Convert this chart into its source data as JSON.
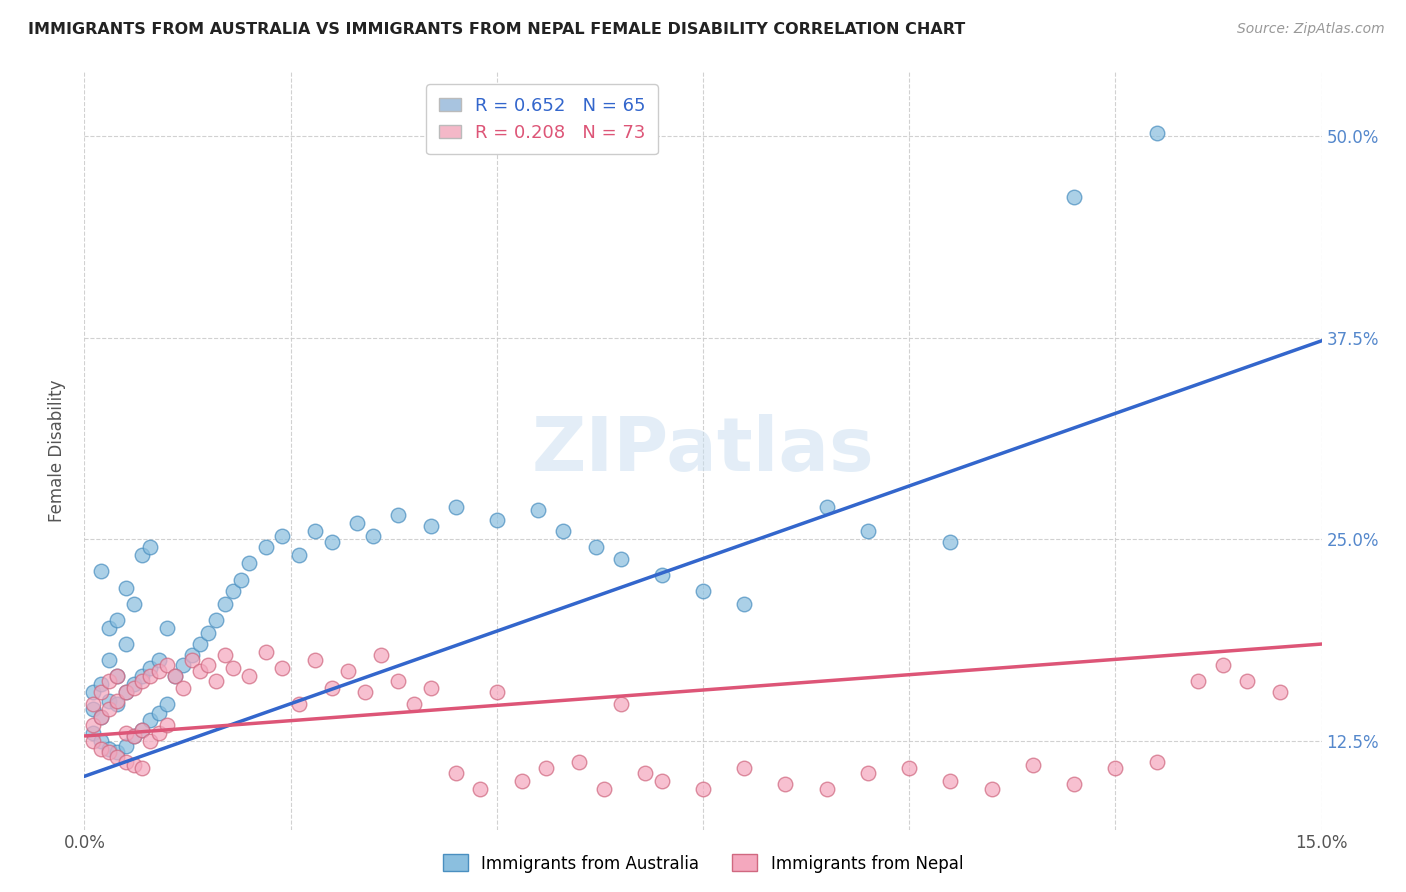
{
  "title": "IMMIGRANTS FROM AUSTRALIA VS IMMIGRANTS FROM NEPAL FEMALE DISABILITY CORRELATION CHART",
  "source": "Source: ZipAtlas.com",
  "ylabel": "Female Disability",
  "ytick_values": [
    0.125,
    0.25,
    0.375,
    0.5
  ],
  "xmin": 0.0,
  "xmax": 0.15,
  "ymin": 0.07,
  "ymax": 0.54,
  "legend_label_aus": "R = 0.652   N = 65",
  "legend_label_nep": "R = 0.208   N = 73",
  "legend_color_aus": "#a8c4e0",
  "legend_color_nep": "#f4b8c8",
  "aus_scatter_color": "#8bbfdf",
  "aus_scatter_edge": "#4a8fc0",
  "nepal_scatter_color": "#f4a8be",
  "nepal_scatter_edge": "#d06880",
  "aus_line_color": "#3366cc",
  "nepal_line_color": "#dd5577",
  "watermark": "ZIPatlas",
  "background_color": "#ffffff",
  "grid_color": "#cccccc",
  "aus_line_x0": 0.0,
  "aus_line_y0": 0.103,
  "aus_line_x1": 0.15,
  "aus_line_y1": 0.373,
  "nep_line_x0": 0.0,
  "nep_line_y0": 0.128,
  "nep_line_x1": 0.15,
  "nep_line_y1": 0.185,
  "australia_x": [
    0.001,
    0.001,
    0.001,
    0.002,
    0.002,
    0.002,
    0.002,
    0.003,
    0.003,
    0.003,
    0.003,
    0.004,
    0.004,
    0.004,
    0.004,
    0.005,
    0.005,
    0.005,
    0.005,
    0.006,
    0.006,
    0.006,
    0.007,
    0.007,
    0.007,
    0.008,
    0.008,
    0.008,
    0.009,
    0.009,
    0.01,
    0.01,
    0.011,
    0.012,
    0.013,
    0.014,
    0.015,
    0.016,
    0.017,
    0.018,
    0.019,
    0.02,
    0.022,
    0.024,
    0.026,
    0.028,
    0.03,
    0.033,
    0.035,
    0.038,
    0.042,
    0.045,
    0.05,
    0.055,
    0.058,
    0.062,
    0.065,
    0.07,
    0.075,
    0.08,
    0.09,
    0.095,
    0.105,
    0.12,
    0.13
  ],
  "australia_y": [
    0.13,
    0.145,
    0.155,
    0.125,
    0.14,
    0.16,
    0.23,
    0.12,
    0.15,
    0.175,
    0.195,
    0.118,
    0.148,
    0.165,
    0.2,
    0.122,
    0.155,
    0.185,
    0.22,
    0.128,
    0.16,
    0.21,
    0.132,
    0.165,
    0.24,
    0.138,
    0.17,
    0.245,
    0.142,
    0.175,
    0.148,
    0.195,
    0.165,
    0.172,
    0.178,
    0.185,
    0.192,
    0.2,
    0.21,
    0.218,
    0.225,
    0.235,
    0.245,
    0.252,
    0.24,
    0.255,
    0.248,
    0.26,
    0.252,
    0.265,
    0.258,
    0.27,
    0.262,
    0.268,
    0.255,
    0.245,
    0.238,
    0.228,
    0.218,
    0.21,
    0.27,
    0.255,
    0.248,
    0.462,
    0.502
  ],
  "nepal_x": [
    0.001,
    0.001,
    0.001,
    0.002,
    0.002,
    0.002,
    0.003,
    0.003,
    0.003,
    0.004,
    0.004,
    0.004,
    0.005,
    0.005,
    0.005,
    0.006,
    0.006,
    0.006,
    0.007,
    0.007,
    0.007,
    0.008,
    0.008,
    0.009,
    0.009,
    0.01,
    0.01,
    0.011,
    0.012,
    0.013,
    0.014,
    0.015,
    0.016,
    0.017,
    0.018,
    0.02,
    0.022,
    0.024,
    0.026,
    0.028,
    0.03,
    0.032,
    0.034,
    0.036,
    0.038,
    0.04,
    0.042,
    0.045,
    0.048,
    0.05,
    0.053,
    0.056,
    0.06,
    0.063,
    0.065,
    0.068,
    0.07,
    0.075,
    0.08,
    0.085,
    0.09,
    0.095,
    0.1,
    0.105,
    0.11,
    0.115,
    0.12,
    0.125,
    0.13,
    0.135,
    0.138,
    0.141,
    0.145
  ],
  "nepal_y": [
    0.135,
    0.148,
    0.125,
    0.14,
    0.155,
    0.12,
    0.145,
    0.162,
    0.118,
    0.15,
    0.165,
    0.115,
    0.155,
    0.13,
    0.112,
    0.158,
    0.128,
    0.11,
    0.162,
    0.132,
    0.108,
    0.165,
    0.125,
    0.168,
    0.13,
    0.172,
    0.135,
    0.165,
    0.158,
    0.175,
    0.168,
    0.172,
    0.162,
    0.178,
    0.17,
    0.165,
    0.18,
    0.17,
    0.148,
    0.175,
    0.158,
    0.168,
    0.155,
    0.178,
    0.162,
    0.148,
    0.158,
    0.105,
    0.095,
    0.155,
    0.1,
    0.108,
    0.112,
    0.095,
    0.148,
    0.105,
    0.1,
    0.095,
    0.108,
    0.098,
    0.095,
    0.105,
    0.108,
    0.1,
    0.095,
    0.11,
    0.098,
    0.108,
    0.112,
    0.162,
    0.172,
    0.162,
    0.155
  ]
}
